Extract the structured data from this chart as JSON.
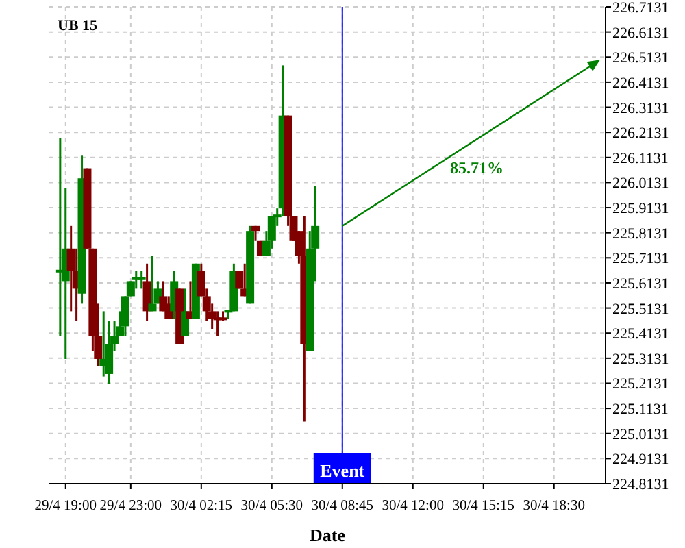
{
  "chart_data": {
    "type": "candlestick",
    "title": "UB 15",
    "xlabel": "Date",
    "categories": [
      null,
      "29/4 19:00",
      null,
      null,
      null,
      null,
      null,
      null,
      null,
      null,
      null,
      null,
      null,
      "29/4 23:00",
      null,
      null,
      null,
      null,
      null,
      null,
      null,
      null,
      null,
      null,
      null,
      null,
      "30/4 02:15",
      null,
      null,
      null,
      null,
      null,
      null,
      null,
      null,
      null,
      null,
      null,
      null,
      "30/4 05:30",
      null,
      null,
      null,
      null,
      null,
      null,
      null,
      null,
      null,
      null,
      null,
      null,
      "30/4 08:45",
      null,
      null,
      null,
      null,
      null,
      null,
      null,
      null,
      null,
      null,
      null,
      null,
      "30/4 12:00",
      null,
      null,
      null,
      null,
      null,
      null,
      null,
      null,
      null,
      null,
      null,
      null,
      "30/4 15:15",
      null,
      null,
      null,
      null,
      null,
      null,
      null,
      null,
      null,
      null,
      null,
      null,
      "30/4 18:30",
      null,
      null,
      null,
      null,
      null,
      null,
      null,
      null
    ],
    "ohlc": [
      [
        225.66,
        226.19,
        225.4,
        225.66
      ],
      [
        225.62,
        225.99,
        225.31,
        225.75
      ],
      [
        225.75,
        225.84,
        225.5,
        225.66
      ],
      [
        225.66,
        225.75,
        225.46,
        225.59
      ],
      [
        225.57,
        226.12,
        225.53,
        226.03
      ],
      [
        226.07,
        226.07,
        225.75,
        225.75
      ],
      [
        225.75,
        225.75,
        225.34,
        225.4
      ],
      [
        225.4,
        225.53,
        225.28,
        225.31
      ],
      [
        225.28,
        225.5,
        225.24,
        225.31
      ],
      [
        225.25,
        225.46,
        225.21,
        225.37
      ],
      [
        225.37,
        225.46,
        225.34,
        225.4
      ],
      [
        225.4,
        225.5,
        225.4,
        225.44
      ],
      [
        225.44,
        225.56,
        225.4,
        225.56
      ],
      [
        225.56,
        225.62,
        225.56,
        225.62
      ],
      [
        225.63,
        225.66,
        225.59,
        225.63
      ],
      [
        225.63,
        225.66,
        225.59,
        225.63
      ],
      [
        225.62,
        225.69,
        225.46,
        225.5
      ],
      [
        225.5,
        225.72,
        225.5,
        225.53
      ],
      [
        225.53,
        225.62,
        225.53,
        225.59
      ],
      [
        225.56,
        225.62,
        225.5,
        225.5
      ],
      [
        225.53,
        225.56,
        225.47,
        225.47
      ],
      [
        225.5,
        225.66,
        225.47,
        225.62
      ],
      [
        225.59,
        225.59,
        225.37,
        225.37
      ],
      [
        225.4,
        225.59,
        225.4,
        225.5
      ],
      [
        225.5,
        225.62,
        225.47,
        225.47
      ],
      [
        225.47,
        225.69,
        225.47,
        225.69
      ],
      [
        225.66,
        225.69,
        225.56,
        225.56
      ],
      [
        225.56,
        225.59,
        225.46,
        225.5
      ],
      [
        225.5,
        225.53,
        225.43,
        225.47
      ],
      [
        225.47,
        225.5,
        225.4,
        225.47
      ],
      [
        225.47,
        225.5,
        225.46,
        225.47
      ],
      [
        225.5,
        225.5,
        225.47,
        225.5
      ],
      [
        225.5,
        225.69,
        225.5,
        225.66
      ],
      [
        225.66,
        225.66,
        225.59,
        225.59
      ],
      [
        225.59,
        225.69,
        225.56,
        225.56
      ],
      [
        225.53,
        225.84,
        225.53,
        225.82
      ],
      [
        225.84,
        225.84,
        225.78,
        225.82
      ],
      [
        225.78,
        225.78,
        225.72,
        225.72
      ],
      [
        225.72,
        225.82,
        225.72,
        225.78
      ],
      [
        225.78,
        225.88,
        225.75,
        225.88
      ],
      [
        225.88,
        225.91,
        225.84,
        225.88
      ],
      [
        225.91,
        226.48,
        225.88,
        226.28
      ],
      [
        226.28,
        226.28,
        225.84,
        225.88
      ],
      [
        225.88,
        225.88,
        225.78,
        225.78
      ],
      [
        225.82,
        225.82,
        225.69,
        225.72
      ],
      [
        225.72,
        225.88,
        225.06,
        225.37
      ],
      [
        225.34,
        225.82,
        225.34,
        225.75
      ],
      [
        225.75,
        226.0,
        225.62,
        225.84
      ],
      null,
      null,
      null,
      null,
      null,
      null,
      null,
      null,
      null,
      null,
      null,
      null,
      null,
      null,
      null,
      null,
      null,
      null,
      null,
      null,
      null,
      null,
      null,
      null,
      null,
      null,
      null,
      null,
      null,
      null,
      null,
      null,
      null,
      null,
      null,
      null,
      null,
      null,
      null,
      null,
      null,
      null,
      null,
      null,
      null,
      null,
      null,
      null,
      null,
      null,
      null,
      null
    ],
    "colors": [
      "#008000",
      "#008000",
      "#800000",
      "#800000",
      "#008000",
      "#800000",
      "#800000",
      "#800000",
      "#008000",
      "#008000",
      "#008000",
      "#008000",
      "#008000",
      "#008000",
      "#008000",
      "#008000",
      "#800000",
      "#008000",
      "#008000",
      "#800000",
      "#800000",
      "#008000",
      "#800000",
      "#008000",
      "#800000",
      "#008000",
      "#800000",
      "#800000",
      "#800000",
      "#800000",
      "#800000",
      "#008000",
      "#008000",
      "#800000",
      "#800000",
      "#008000",
      "#800000",
      "#800000",
      "#008000",
      "#008000",
      "#008000",
      "#008000",
      "#800000",
      "#800000",
      "#800000",
      "#800000",
      "#008000",
      "#008000",
      null,
      null,
      null,
      null,
      null,
      null,
      null,
      null,
      null,
      null,
      null,
      null,
      null,
      null,
      null,
      null,
      null,
      null,
      null,
      null,
      null,
      null,
      null,
      null,
      null,
      null,
      null,
      null,
      null,
      null,
      null,
      null,
      null,
      null,
      null,
      null,
      null,
      null,
      null,
      null,
      null,
      null,
      null,
      null,
      null,
      null,
      null,
      null,
      null,
      null,
      null,
      null
    ],
    "ylim": [
      224.8131,
      226.7131
    ],
    "yticks": [
      224.8131,
      224.9131,
      225.0131,
      225.1131,
      225.2131,
      225.3131,
      225.4131,
      225.5131,
      225.6131,
      225.7131,
      225.8131,
      225.9131,
      226.0131,
      226.1131,
      226.2131,
      226.3131,
      226.4131,
      226.5131,
      226.6131,
      226.7131
    ],
    "grid": true,
    "ref_lines": [
      {
        "axis": "x",
        "value": "30/4 08:45",
        "label": "Event",
        "color": "#0000ff"
      }
    ],
    "annotations": [
      "85.71%"
    ]
  }
}
